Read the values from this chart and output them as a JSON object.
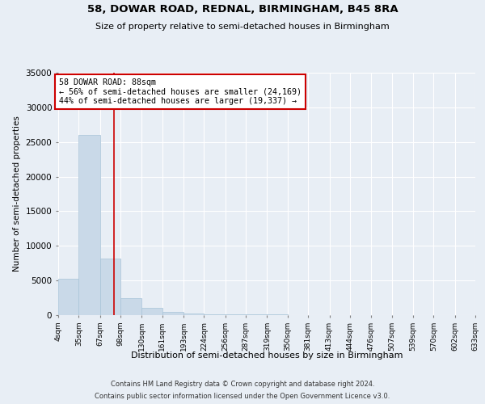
{
  "title": "58, DOWAR ROAD, REDNAL, BIRMINGHAM, B45 8RA",
  "subtitle": "Size of property relative to semi-detached houses in Birmingham",
  "xlabel": "Distribution of semi-detached houses by size in Birmingham",
  "ylabel": "Number of semi-detached properties",
  "footer1": "Contains HM Land Registry data © Crown copyright and database right 2024.",
  "footer2": "Contains public sector information licensed under the Open Government Licence v3.0.",
  "annotation_title": "58 DOWAR ROAD: 88sqm",
  "annotation_line1": "← 56% of semi-detached houses are smaller (24,169)",
  "annotation_line2": "44% of semi-detached houses are larger (19,337) →",
  "property_size": 88,
  "bar_color": "#c9d9e8",
  "bar_edge_color": "#a8c4d8",
  "line_color": "#cc0000",
  "annotation_box_color": "#ffffff",
  "annotation_box_edge": "#cc0000",
  "background_color": "#e8eef5",
  "plot_bg_color": "#e8eef5",
  "ylim": [
    0,
    35000
  ],
  "bin_edges": [
    4,
    35,
    67,
    98,
    130,
    161,
    193,
    224,
    256,
    287,
    319,
    350,
    381,
    413,
    444,
    476,
    507,
    539,
    570,
    602,
    633
  ],
  "bin_labels": [
    "4sqm",
    "35sqm",
    "67sqm",
    "98sqm",
    "130sqm",
    "161sqm",
    "193sqm",
    "224sqm",
    "256sqm",
    "287sqm",
    "319sqm",
    "350sqm",
    "381sqm",
    "413sqm",
    "444sqm",
    "476sqm",
    "507sqm",
    "539sqm",
    "570sqm",
    "602sqm",
    "633sqm"
  ],
  "bar_heights": [
    5300,
    26000,
    8200,
    2500,
    1000,
    500,
    250,
    150,
    100,
    80,
    60,
    40,
    30,
    20,
    15,
    10,
    8,
    5,
    3,
    2
  ]
}
